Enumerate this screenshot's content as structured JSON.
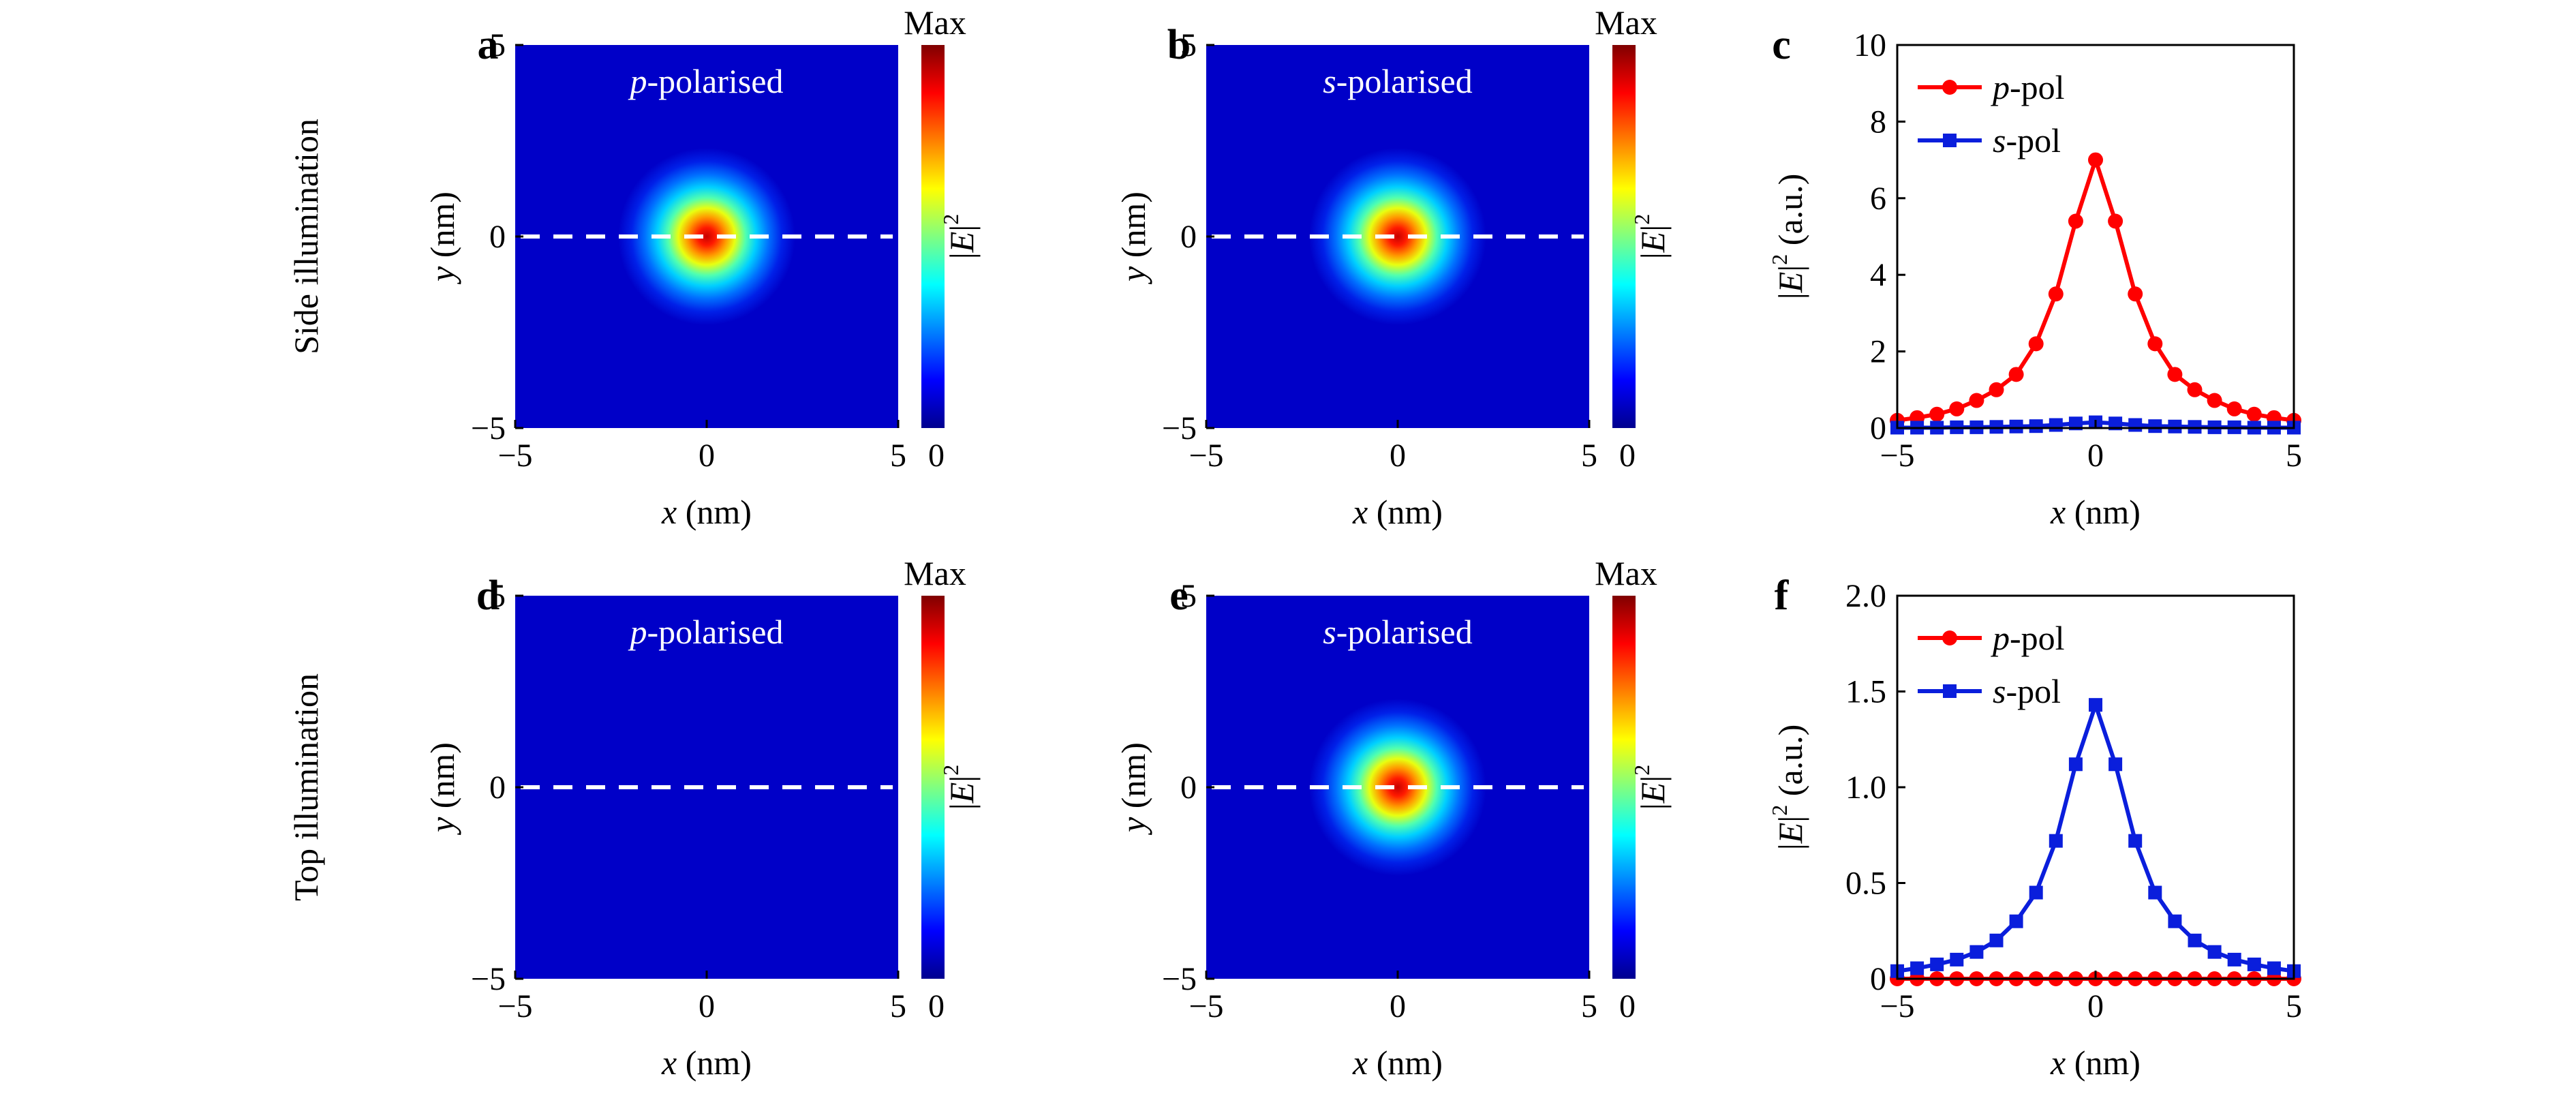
{
  "row_labels": [
    "Side illumination",
    "Top illumination"
  ],
  "colorbar": {
    "max_label": "Max",
    "min_label": "0",
    "var_label": "E",
    "var_exp": "2"
  },
  "maps": [
    {
      "panel": "a",
      "pol_letter": "p",
      "pol_text": "-polarised",
      "has_spot": true
    },
    {
      "panel": "b",
      "pol_letter": "s",
      "pol_text": "-polarised",
      "has_spot": true
    },
    {
      "panel": "d",
      "pol_letter": "p",
      "pol_text": "-polarised",
      "has_spot": false
    },
    {
      "panel": "e",
      "pol_letter": "s",
      "pol_text": "-polarised",
      "has_spot": true
    }
  ],
  "map_axes": {
    "xlabel_var": "x",
    "xlabel_unit": " (nm)",
    "ylabel_var": "y",
    "ylabel_unit": " (nm)",
    "ticks": [
      -5,
      0,
      5
    ],
    "tick_labels": [
      "−5",
      "0",
      "5"
    ]
  },
  "chart_data": [
    {
      "type": "line",
      "panel": "c",
      "xlabel_var": "x",
      "xlabel_unit": " (nm)",
      "ylabel_var": "E",
      "ylabel_exp": "2",
      "ylabel_unit": " (a.u.)",
      "xlim": [
        -5,
        5
      ],
      "ylim": [
        0,
        10
      ],
      "x_ticks": [
        -5,
        0,
        5
      ],
      "x_tick_labels": [
        "−5",
        "0",
        "5"
      ],
      "y_ticks": [
        0,
        2,
        4,
        6,
        8,
        10
      ],
      "y_tick_labels": [
        "0",
        "2",
        "4",
        "6",
        "8",
        "10"
      ],
      "legend_position": "top-left",
      "x": [
        -5,
        -4.5,
        -4,
        -3.5,
        -3,
        -2.5,
        -2,
        -1.5,
        -1,
        -0.5,
        0,
        0.5,
        1,
        1.5,
        2,
        2.5,
        3,
        3.5,
        4,
        4.5,
        5
      ],
      "series": [
        {
          "name_letter": "p",
          "name_text": "-pol",
          "color": "#ff0000",
          "marker": "circle",
          "values": [
            0.2,
            0.27,
            0.36,
            0.5,
            0.72,
            1.0,
            1.4,
            2.2,
            3.5,
            5.4,
            7.0,
            5.4,
            3.5,
            2.2,
            1.4,
            1.0,
            0.72,
            0.5,
            0.36,
            0.27,
            0.2
          ]
        },
        {
          "name_letter": "s",
          "name_text": "-pol",
          "color": "#0a1edc",
          "marker": "square",
          "values": [
            0.01,
            0.01,
            0.01,
            0.02,
            0.02,
            0.03,
            0.04,
            0.05,
            0.08,
            0.12,
            0.15,
            0.12,
            0.08,
            0.05,
            0.04,
            0.03,
            0.02,
            0.02,
            0.01,
            0.01,
            0.01
          ]
        }
      ]
    },
    {
      "type": "line",
      "panel": "f",
      "xlabel_var": "x",
      "xlabel_unit": " (nm)",
      "ylabel_var": "E",
      "ylabel_exp": "2",
      "ylabel_unit": " (a.u.)",
      "xlim": [
        -5,
        5
      ],
      "ylim": [
        0,
        2
      ],
      "x_ticks": [
        -5,
        0,
        5
      ],
      "x_tick_labels": [
        "−5",
        "0",
        "5"
      ],
      "y_ticks": [
        0,
        0.5,
        1,
        1.5,
        2
      ],
      "y_tick_labels": [
        "0",
        "0.5",
        "1.0",
        "1.5",
        "2.0"
      ],
      "legend_position": "top-left",
      "x": [
        -5,
        -4.5,
        -4,
        -3.5,
        -3,
        -2.5,
        -2,
        -1.5,
        -1,
        -0.5,
        0,
        0.5,
        1,
        1.5,
        2,
        2.5,
        3,
        3.5,
        4,
        4.5,
        5
      ],
      "series": [
        {
          "name_letter": "p",
          "name_text": "-pol",
          "color": "#ff0000",
          "marker": "circle",
          "values": [
            0,
            0,
            0,
            0,
            0,
            0,
            0,
            0,
            0,
            0,
            0,
            0,
            0,
            0,
            0,
            0,
            0,
            0,
            0,
            0,
            0
          ]
        },
        {
          "name_letter": "s",
          "name_text": "-pol",
          "color": "#0a1edc",
          "marker": "square",
          "values": [
            0.04,
            0.055,
            0.075,
            0.1,
            0.14,
            0.2,
            0.3,
            0.45,
            0.72,
            1.12,
            1.43,
            1.12,
            0.72,
            0.45,
            0.3,
            0.2,
            0.14,
            0.1,
            0.075,
            0.055,
            0.04
          ]
        }
      ]
    }
  ]
}
